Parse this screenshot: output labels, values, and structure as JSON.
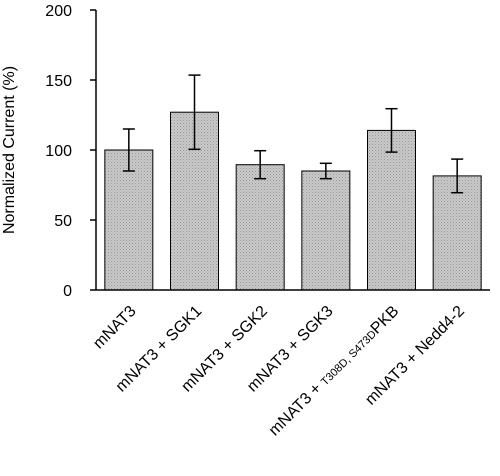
{
  "chart_data": {
    "type": "bar",
    "title": "",
    "xlabel": "",
    "ylabel": "Normalized Current (%)",
    "ylim": [
      0,
      200
    ],
    "yticks": [
      0,
      50,
      100,
      150,
      200
    ],
    "grid": false,
    "bar_fill": "#c8c8c8",
    "categories": [
      {
        "parts": [
          {
            "text": "mNAT3"
          }
        ]
      },
      {
        "parts": [
          {
            "text": "mNAT3 + SGK1"
          }
        ]
      },
      {
        "parts": [
          {
            "text": "mNAT3 + SGK2"
          }
        ]
      },
      {
        "parts": [
          {
            "text": "mNAT3 + SGK3"
          }
        ]
      },
      {
        "parts": [
          {
            "text": "mNAT3 + "
          },
          {
            "text": "T308D, S473D",
            "sub": true
          },
          {
            "text": "PKB"
          }
        ]
      },
      {
        "parts": [
          {
            "text": "mNAT3 + Nedd4-2"
          }
        ]
      }
    ],
    "values": [
      100,
      127,
      89.5,
      85,
      114,
      81.5
    ],
    "errors": [
      15,
      26.5,
      10,
      5.5,
      15.5,
      12
    ]
  }
}
